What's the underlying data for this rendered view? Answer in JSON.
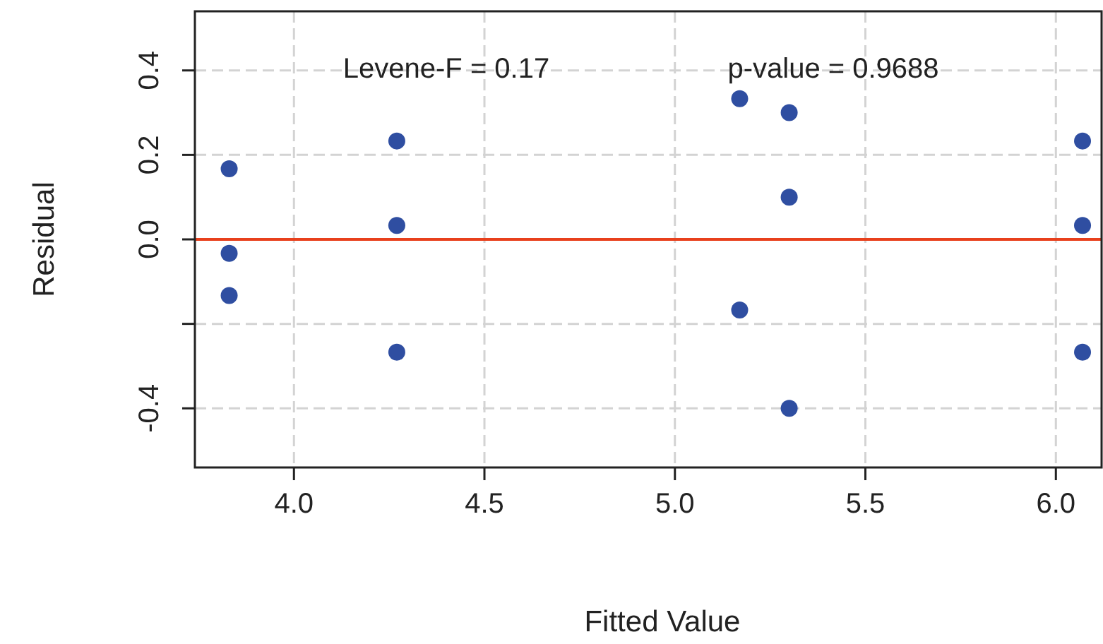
{
  "chart_data": {
    "type": "scatter",
    "xlabel": "Fitted Value",
    "ylabel": "Residual",
    "x": [
      3.83,
      3.83,
      3.83,
      4.27,
      4.27,
      4.27,
      5.17,
      5.17,
      5.3,
      5.3,
      5.3,
      6.07,
      6.07,
      6.07
    ],
    "series": [
      {
        "color": "#2f4ea1",
        "values": [
          0.167,
          -0.033,
          -0.133,
          0.233,
          0.033,
          -0.267,
          0.333,
          -0.167,
          0.3,
          0.1,
          -0.4,
          0.233,
          0.033,
          -0.267
        ]
      }
    ],
    "xlim": [
      3.74,
      6.12
    ],
    "xticks": [
      {
        "value": 4,
        "label": "4.0"
      },
      4.5,
      {
        "value": 5,
        "label": "5.0"
      },
      5.5,
      {
        "value": 6,
        "label": "6.0"
      }
    ],
    "ylim": [
      -0.54,
      0.54
    ],
    "yticks": [
      -0.4,
      {
        "value": -0.2,
        "label": null
      },
      {
        "value": 0,
        "label": "0.0"
      },
      0.2,
      0.4
    ],
    "ref_lines": [
      {
        "axis": "y",
        "value": 0,
        "color": "#e8401c"
      }
    ],
    "annotations": [
      "Levene-F = 0.17",
      "p-value = 0.9688"
    ],
    "grid": true,
    "marker": "circle"
  }
}
